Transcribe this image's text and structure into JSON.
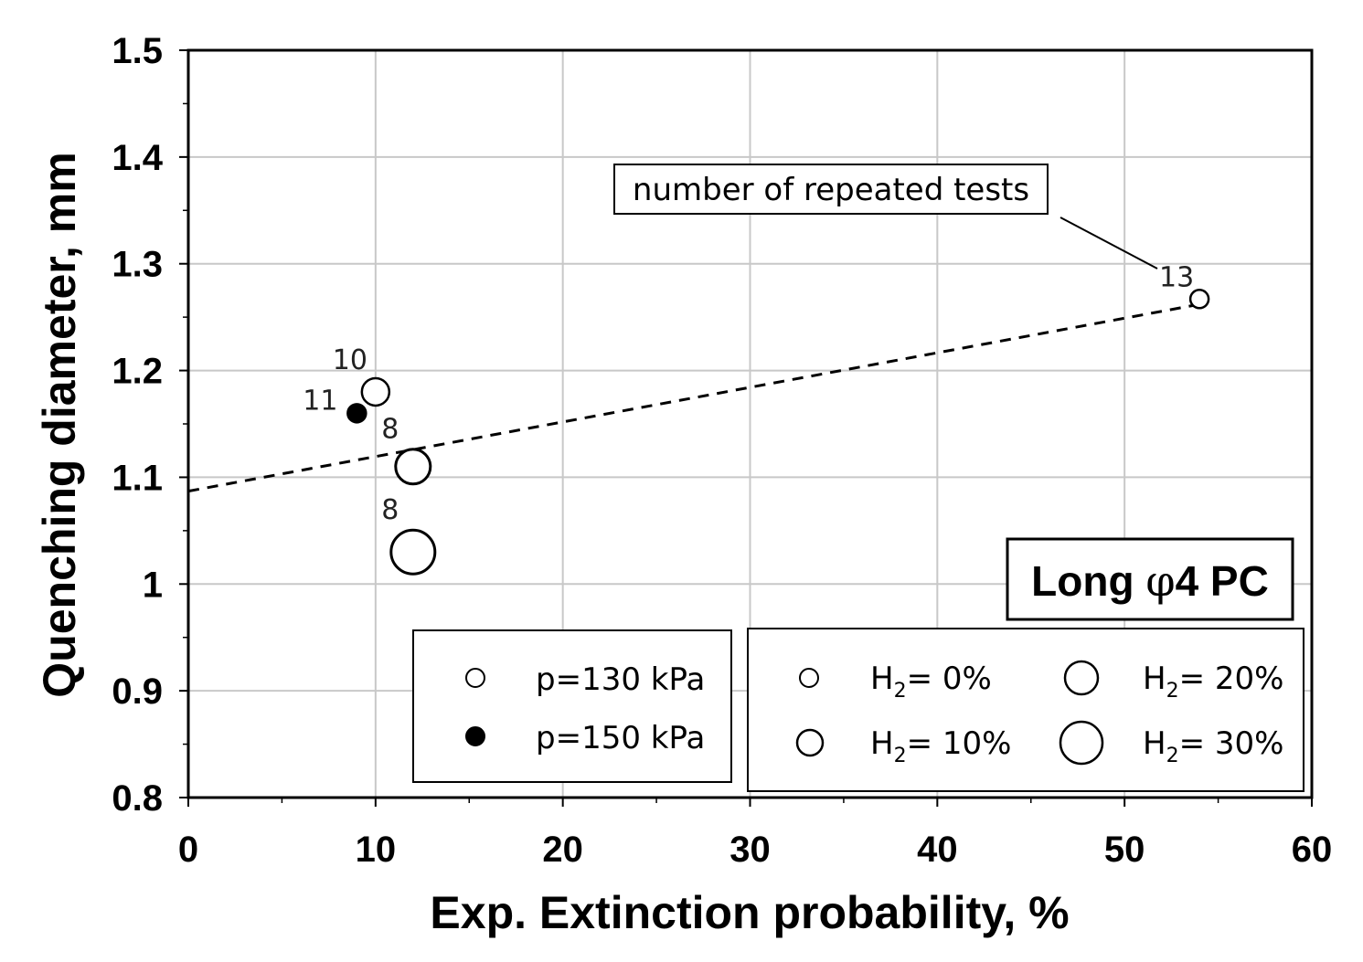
{
  "chart_data": {
    "type": "scatter",
    "title": "Long φ4 PC",
    "title_parts": {
      "pre": "Long ",
      "phi": "φ",
      "post": "4 PC"
    },
    "xlabel": "Exp. Extinction probability, %",
    "ylabel": "Quenching diameter, mm",
    "xlim": [
      0,
      60
    ],
    "ylim": [
      0.8,
      1.5
    ],
    "x_ticks": [
      0,
      10,
      20,
      30,
      40,
      50,
      60
    ],
    "x_tick_labels": [
      "0",
      "10",
      "20",
      "30",
      "40",
      "50",
      "60"
    ],
    "y_ticks": [
      0.8,
      0.9,
      1.0,
      1.1,
      1.2,
      1.3,
      1.4,
      1.5
    ],
    "y_tick_labels": [
      "0.8",
      "0.9",
      "1",
      "1.1",
      "1.2",
      "1.3",
      "1.4",
      "1.5"
    ],
    "grid": true,
    "points": [
      {
        "x": 54,
        "y": 1.267,
        "pressure": "p=130 kPa",
        "h2": "H2= 0%",
        "h2_level": 0,
        "filled": false,
        "label": "13"
      },
      {
        "x": 10,
        "y": 1.18,
        "pressure": "p=130 kPa",
        "h2": "H2= 10%",
        "h2_level": 1,
        "filled": false,
        "label": "10"
      },
      {
        "x": 9,
        "y": 1.16,
        "pressure": "p=150 kPa",
        "h2": "H2= 0%",
        "h2_level": 0,
        "filled": true,
        "label": "11"
      },
      {
        "x": 12,
        "y": 1.11,
        "pressure": "p=130 kPa",
        "h2": "H2= 20%",
        "h2_level": 2,
        "filled": false,
        "label": "8"
      },
      {
        "x": 12,
        "y": 1.03,
        "pressure": "p=130 kPa",
        "h2": "H2= 30%",
        "h2_level": 3,
        "filled": false,
        "label": "8"
      }
    ],
    "trendline": {
      "style": "dashed",
      "x": [
        0,
        54
      ],
      "y": [
        1.087,
        1.262
      ]
    },
    "annotation": {
      "text": "number of repeated tests",
      "points_to": "13"
    },
    "legend_pressure": {
      "position": "bottom-center",
      "entries": [
        {
          "label": "p=130 kPa",
          "filled": false
        },
        {
          "label": "p=150 kPa",
          "filled": true
        }
      ]
    },
    "legend_h2": {
      "position": "bottom-right",
      "entries": [
        {
          "pre": "H",
          "sub": "2",
          "post": "= 0%",
          "h2_level": 0
        },
        {
          "pre": "H",
          "sub": "2",
          "post": "= 20%",
          "h2_level": 2
        },
        {
          "pre": "H",
          "sub": "2",
          "post": "= 10%",
          "h2_level": 1
        },
        {
          "pre": "H",
          "sub": "2",
          "post": "= 30%",
          "h2_level": 3
        }
      ]
    }
  }
}
